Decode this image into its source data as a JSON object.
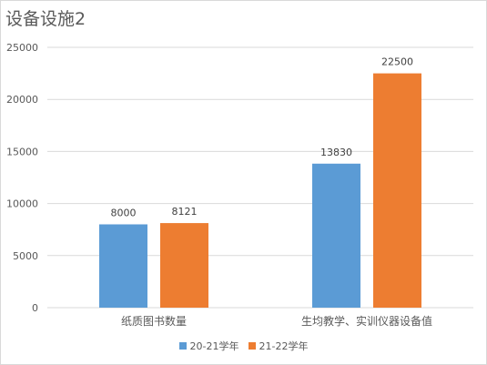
{
  "chart_data": {
    "type": "bar",
    "title": "设备设施2",
    "categories": [
      "纸质图书数量",
      "生均教学、实训仪器设备值"
    ],
    "series": [
      {
        "name": "20-21学年",
        "values": [
          8000,
          13830
        ],
        "color": "#5b9bd5"
      },
      {
        "name": "21-22学年",
        "values": [
          8121,
          22500
        ],
        "color": "#ed7d31"
      }
    ],
    "ylim": [
      0,
      25000
    ],
    "yticks": [
      0,
      5000,
      10000,
      15000,
      20000,
      25000
    ],
    "grid": true,
    "legend_position": "bottom"
  }
}
